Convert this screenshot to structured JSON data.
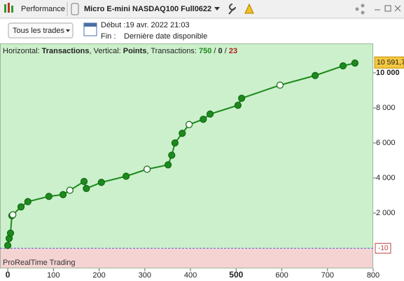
{
  "toolbar": {
    "tab": "Performance",
    "instrument": "Micro E-mini NASDAQ100 Full0622"
  },
  "filters": {
    "trades": "Tous les trades",
    "start": "Début :19 avr. 2022 21:03",
    "end_label": "Fin :",
    "end_value": "Dernière date disponible"
  },
  "chart_data": {
    "type": "line",
    "header": [
      "Horizontal: ",
      "Transactions",
      ", Vertical: ",
      "Points",
      ", Transactions: ",
      "750",
      " / ",
      "0",
      " / ",
      "23"
    ],
    "watermark": "ProRealTime Trading",
    "x": [
      0,
      3,
      6,
      9,
      11,
      29,
      44,
      90,
      121,
      136,
      167,
      172,
      205,
      259,
      305,
      351,
      359,
      366,
      382,
      397,
      428,
      443,
      504,
      512,
      596,
      673,
      734,
      760
    ],
    "series": [
      {
        "name": "Points",
        "color": "#1e8a1e",
        "values": [
          150,
          550,
          850,
          1850,
          1900,
          2350,
          2650,
          2950,
          3050,
          3300,
          3800,
          3400,
          3750,
          4100,
          4500,
          4750,
          5300,
          6000,
          6550,
          7050,
          7350,
          7650,
          8150,
          8550,
          9300,
          9850,
          10400,
          10560
        ]
      }
    ],
    "last_value": 10591.7,
    "last_value_label": "10 591,7",
    "zero_value": -10,
    "zero_label": "-10",
    "xlim": [
      -17,
      800
    ],
    "ylim": [
      -1160,
      11680
    ],
    "xticks": [
      0,
      100,
      200,
      300,
      400,
      500,
      600,
      700,
      800
    ],
    "yticks": [
      {
        "value": 2000,
        "label": "2 000"
      },
      {
        "value": 4000,
        "label": "4 000"
      },
      {
        "value": 6000,
        "label": "6 000"
      },
      {
        "value": 8000,
        "label": "8 000"
      },
      {
        "value": 10000,
        "label": "10 000"
      }
    ]
  }
}
